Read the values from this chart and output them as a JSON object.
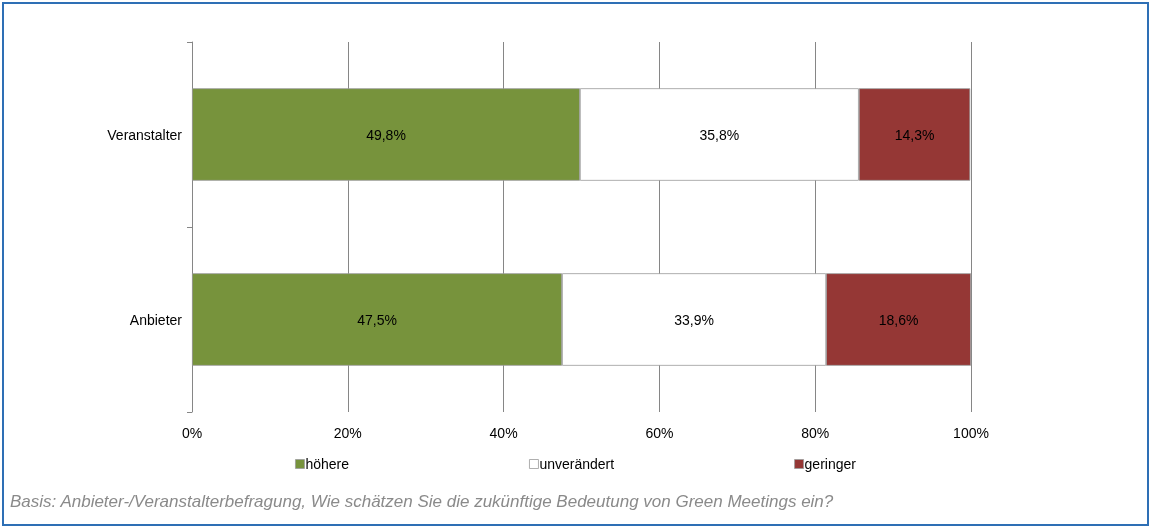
{
  "chart_data": {
    "type": "bar",
    "orientation": "horizontal",
    "stacked": true,
    "categories": [
      "Veranstalter",
      "Anbieter"
    ],
    "series": [
      {
        "name": "höhere",
        "color": "#77933c",
        "values": [
          49.8,
          47.5
        ],
        "value_labels": [
          "49,8%",
          "47,5%"
        ]
      },
      {
        "name": "unverändert",
        "color": "#ffffff",
        "values": [
          35.8,
          33.9
        ],
        "value_labels": [
          "35,8%",
          "33,9%"
        ]
      },
      {
        "name": "geringer",
        "color": "#953735",
        "values": [
          14.3,
          18.6
        ],
        "value_labels": [
          "14,3%",
          "18,6%"
        ]
      }
    ],
    "xlim": [
      0,
      100
    ],
    "xticks": [
      {
        "value": 0,
        "label": "0%"
      },
      {
        "value": 20,
        "label": "20%"
      },
      {
        "value": 40,
        "label": "40%"
      },
      {
        "value": 60,
        "label": "60%"
      },
      {
        "value": 80,
        "label": "80%"
      },
      {
        "value": 100,
        "label": "100%"
      }
    ],
    "grid": "x",
    "legend": "bottom",
    "annotations": [
      "Basis: Anbieter-/Veranstalterbefragung, Wie schätzen Sie die zukünftige Bedeutung von Green Meetings ein?"
    ]
  }
}
